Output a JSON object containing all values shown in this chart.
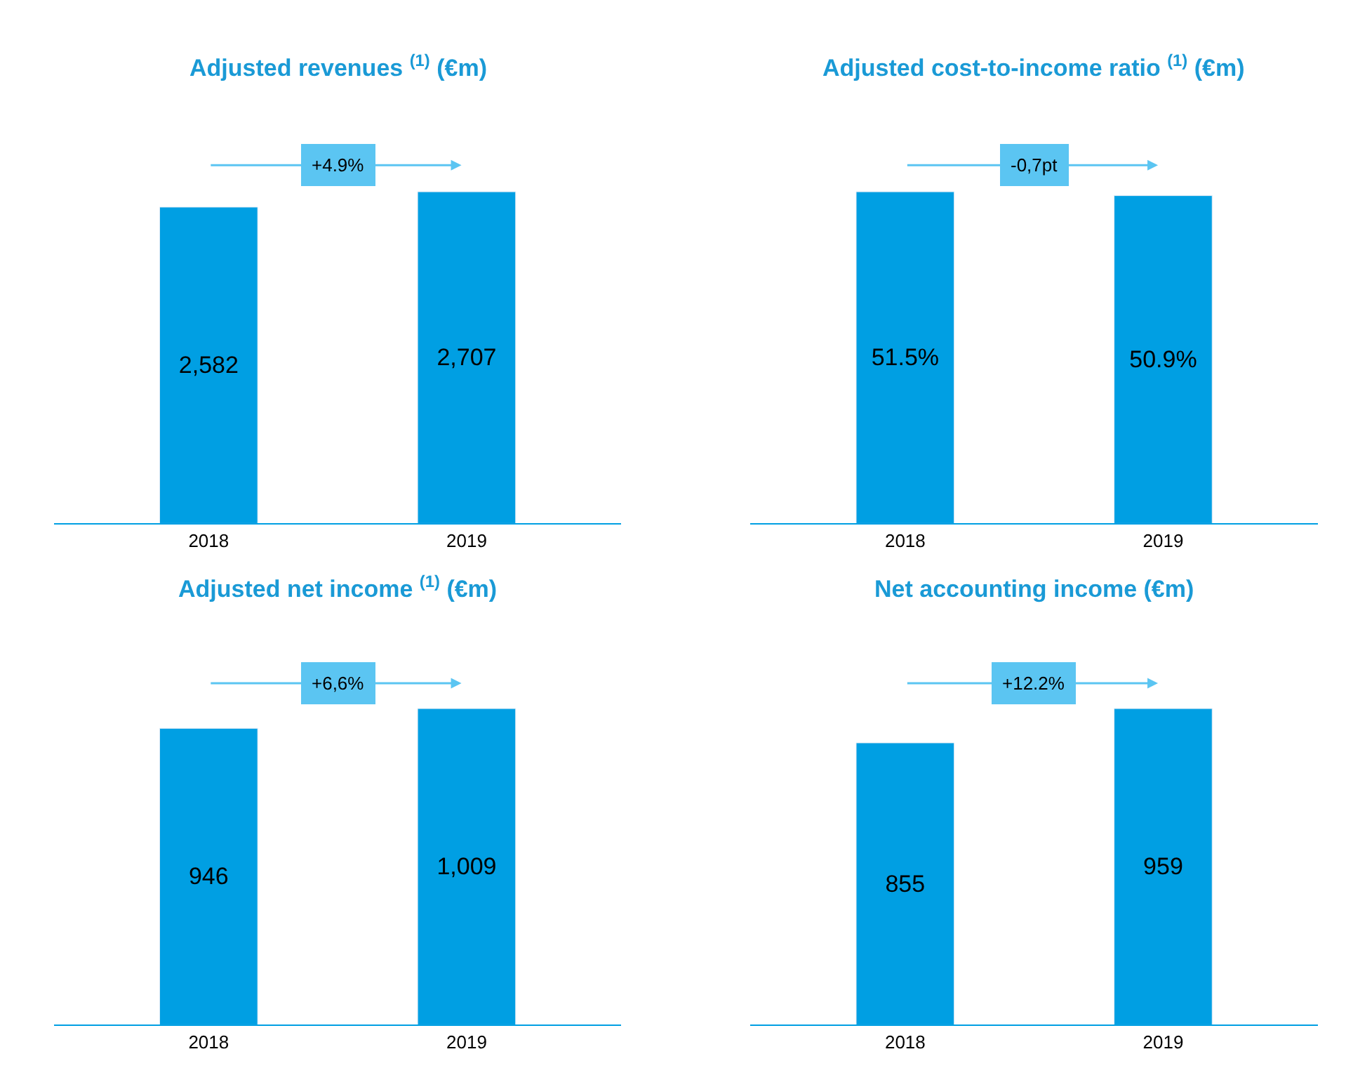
{
  "chart_data": [
    {
      "type": "bar",
      "title": "Adjusted revenues $^{(1)}$ (€m)",
      "categories": [
        "2018",
        "2019"
      ],
      "values": [
        2582,
        2707
      ],
      "value_labels": [
        "2,582",
        "2,707"
      ],
      "color": "#009fe3",
      "annotations": [
        "+4.9%"
      ]
    },
    {
      "type": "bar",
      "title": "Adjusted cost-to-income ratio $^{(1)}$ (€m)",
      "categories": [
        "2018",
        "2019"
      ],
      "values": [
        51.5,
        50.9
      ],
      "value_labels": [
        "51.5%",
        "50.9%"
      ],
      "color": "#009fe3",
      "annotations": [
        "-0,7pt"
      ]
    },
    {
      "type": "bar",
      "title": "Adjusted net income $^{(1)}$ (€m)",
      "categories": [
        "2018",
        "2019"
      ],
      "values": [
        946,
        1009
      ],
      "color": "#009fe3",
      "value_labels": [
        "946",
        "1,009"
      ],
      "annotations": [
        "+6,6%"
      ]
    },
    {
      "type": "bar",
      "title": "Net accounting income (€m)",
      "categories": [
        "2018",
        "2019"
      ],
      "values": [
        855,
        959
      ],
      "color": "#009fe3",
      "data_labels": true,
      "annotations": [
        "+12.2%"
      ]
    }
  ]
}
